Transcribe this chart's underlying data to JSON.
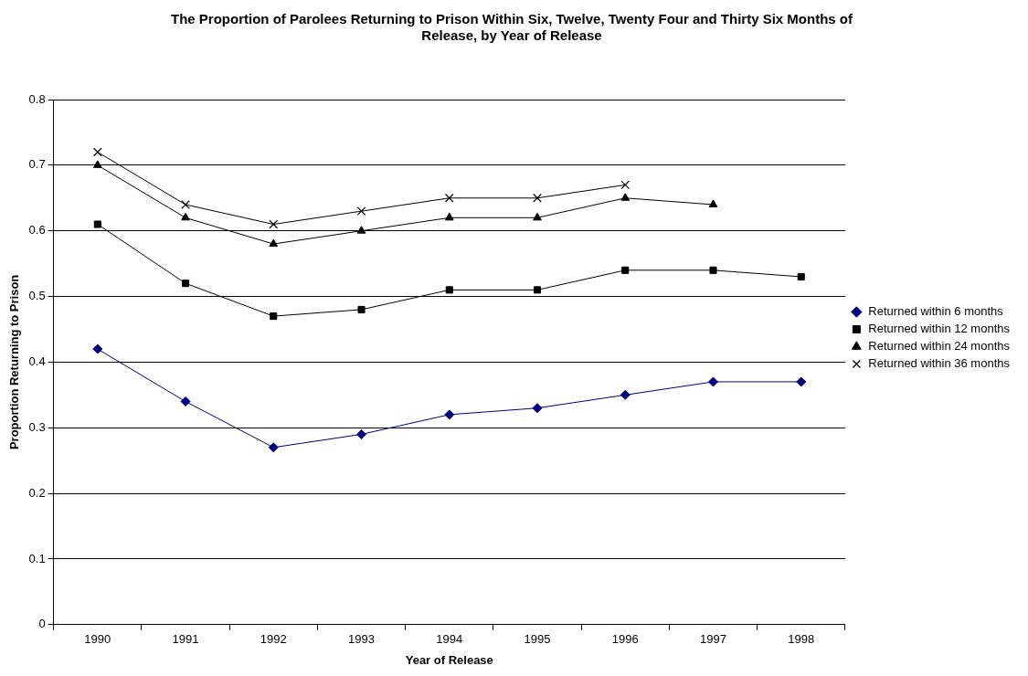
{
  "chart_data": {
    "type": "line",
    "title": "The Proportion of Parolees Returning to Prison Within Six, Twelve, Twenty Four and Thirty Six Months of Release, by Year of Release",
    "xlabel": "Year of Release",
    "ylabel": "Proportion Returning to Prison",
    "categories": [
      "1990",
      "1991",
      "1992",
      "1993",
      "1994",
      "1995",
      "1996",
      "1997",
      "1998"
    ],
    "series": [
      {
        "name": "Returned within 6 months",
        "color": "#000080",
        "marker": "diamond",
        "values": [
          0.42,
          0.34,
          0.27,
          0.29,
          0.32,
          0.33,
          0.35,
          0.37,
          0.37
        ]
      },
      {
        "name": "Returned within 12 months",
        "color": "#000000",
        "marker": "square",
        "values": [
          0.61,
          0.52,
          0.47,
          0.48,
          0.51,
          0.51,
          0.54,
          0.54,
          0.53
        ]
      },
      {
        "name": "Returned within 24 months",
        "color": "#000000",
        "marker": "triangle",
        "values": [
          0.7,
          0.62,
          0.58,
          0.6,
          0.62,
          0.62,
          0.65,
          0.64,
          null
        ]
      },
      {
        "name": "Returned within 36 months",
        "color": "#000000",
        "marker": "cross",
        "values": [
          0.72,
          0.64,
          0.61,
          0.63,
          0.65,
          0.65,
          0.67,
          null,
          null
        ]
      }
    ],
    "ylim": [
      0,
      0.8
    ],
    "yticks": [
      0,
      0.1,
      0.2,
      0.3,
      0.4,
      0.5,
      0.6,
      0.7,
      0.8
    ],
    "grid": "y",
    "legend": "right",
    "line_style": "solid"
  }
}
